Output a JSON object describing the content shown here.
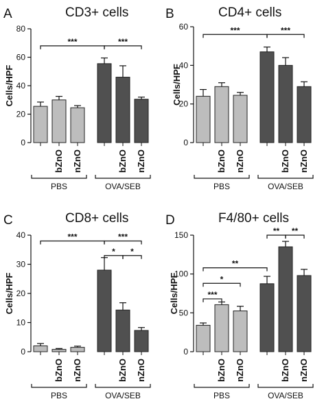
{
  "chart_data": [
    {
      "panel": "A",
      "type": "bar",
      "title": "CD3+ cells",
      "ylabel": "Cells/HPF",
      "ylim": [
        0,
        80
      ],
      "yticks": [
        0,
        20,
        40,
        60,
        80
      ],
      "categories": [
        "",
        "bZnO",
        "nZnO",
        "",
        "bZnO",
        "nZnO"
      ],
      "groups": [
        {
          "label": "PBS",
          "bars": [
            0,
            1,
            2
          ]
        },
        {
          "label": "OVA/SEB",
          "bars": [
            3,
            4,
            5
          ]
        }
      ],
      "values": [
        25.5,
        30,
        24.5,
        55.5,
        46,
        30.5
      ],
      "errors": [
        3,
        2.5,
        1.5,
        4,
        8,
        1.5
      ],
      "fills": [
        "#bdbdbd",
        "#bdbdbd",
        "#bdbdbd",
        "#505050",
        "#505050",
        "#505050"
      ],
      "significance": [
        {
          "from": 0,
          "to": 3,
          "label": "***",
          "y": 68
        },
        {
          "from": 3,
          "to": 5,
          "label": "***",
          "y": 68
        }
      ]
    },
    {
      "panel": "B",
      "type": "bar",
      "title": "CD4+ cells",
      "ylabel": "Cells/HPF",
      "ylim": [
        0,
        60
      ],
      "yticks": [
        0,
        20,
        40,
        60
      ],
      "categories": [
        "",
        "bZnO",
        "nZnO",
        "",
        "bZnO",
        "nZnO"
      ],
      "groups": [
        {
          "label": "PBS",
          "bars": [
            0,
            1,
            2
          ]
        },
        {
          "label": "OVA/SEB",
          "bars": [
            3,
            4,
            5
          ]
        }
      ],
      "values": [
        24,
        29,
        24.5,
        47,
        40,
        29
      ],
      "errors": [
        3.5,
        2,
        1.5,
        2.5,
        4,
        2.5
      ],
      "fills": [
        "#bdbdbd",
        "#bdbdbd",
        "#bdbdbd",
        "#505050",
        "#505050",
        "#505050"
      ],
      "significance": [
        {
          "from": 0,
          "to": 3,
          "label": "***",
          "y": 56
        },
        {
          "from": 3,
          "to": 5,
          "label": "***",
          "y": 56
        }
      ]
    },
    {
      "panel": "C",
      "type": "bar",
      "title": "CD8+ cells",
      "ylabel": "Cells/HPF",
      "ylim": [
        0,
        40
      ],
      "yticks": [
        0,
        10,
        20,
        30,
        40
      ],
      "categories": [
        "",
        "bZnO",
        "nZnO",
        "",
        "bZnO",
        "nZnO"
      ],
      "groups": [
        {
          "label": "PBS",
          "bars": [
            0,
            1,
            2
          ]
        },
        {
          "label": "OVA/SEB",
          "bars": [
            3,
            4,
            5
          ]
        }
      ],
      "values": [
        2,
        0.8,
        1.5,
        28,
        14.3,
        7.3
      ],
      "errors": [
        0.8,
        0.3,
        0.4,
        4.3,
        2.5,
        1
      ],
      "fills": [
        "#bdbdbd",
        "#bdbdbd",
        "#bdbdbd",
        "#505050",
        "#505050",
        "#505050"
      ],
      "significance": [
        {
          "from": 0,
          "to": 3,
          "label": "***",
          "y": 38
        },
        {
          "from": 3,
          "to": 5,
          "label": "***",
          "y": 38
        },
        {
          "from": 3,
          "to": 4,
          "label": "*",
          "y": 33
        },
        {
          "from": 4,
          "to": 5,
          "label": "*",
          "y": 33
        }
      ]
    },
    {
      "panel": "D",
      "type": "bar",
      "title": "F4/80+ cells",
      "ylabel": "Cells/HPF",
      "ylim": [
        0,
        150
      ],
      "yticks": [
        0,
        50,
        100,
        150
      ],
      "categories": [
        "",
        "bZnO",
        "nZnO",
        "",
        "bZnO",
        "nZnO"
      ],
      "groups": [
        {
          "label": "PBS",
          "bars": [
            0,
            1,
            2
          ]
        },
        {
          "label": "OVA/SEB",
          "bars": [
            3,
            4,
            5
          ]
        }
      ],
      "values": [
        34,
        60.5,
        52.5,
        87.5,
        135,
        98
      ],
      "errors": [
        3,
        3.5,
        6,
        9.5,
        7,
        8
      ],
      "fills": [
        "#bdbdbd",
        "#bdbdbd",
        "#bdbdbd",
        "#505050",
        "#505050",
        "#505050"
      ],
      "significance": [
        {
          "from": 0,
          "to": 3,
          "label": "**",
          "y": 108
        },
        {
          "from": 0,
          "to": 2,
          "label": "*",
          "y": 88
        },
        {
          "from": 0,
          "to": 1,
          "label": "***",
          "y": 68
        },
        {
          "from": 3,
          "to": 4,
          "label": "**",
          "y": 150
        },
        {
          "from": 4,
          "to": 5,
          "label": "**",
          "y": 150
        }
      ]
    }
  ]
}
